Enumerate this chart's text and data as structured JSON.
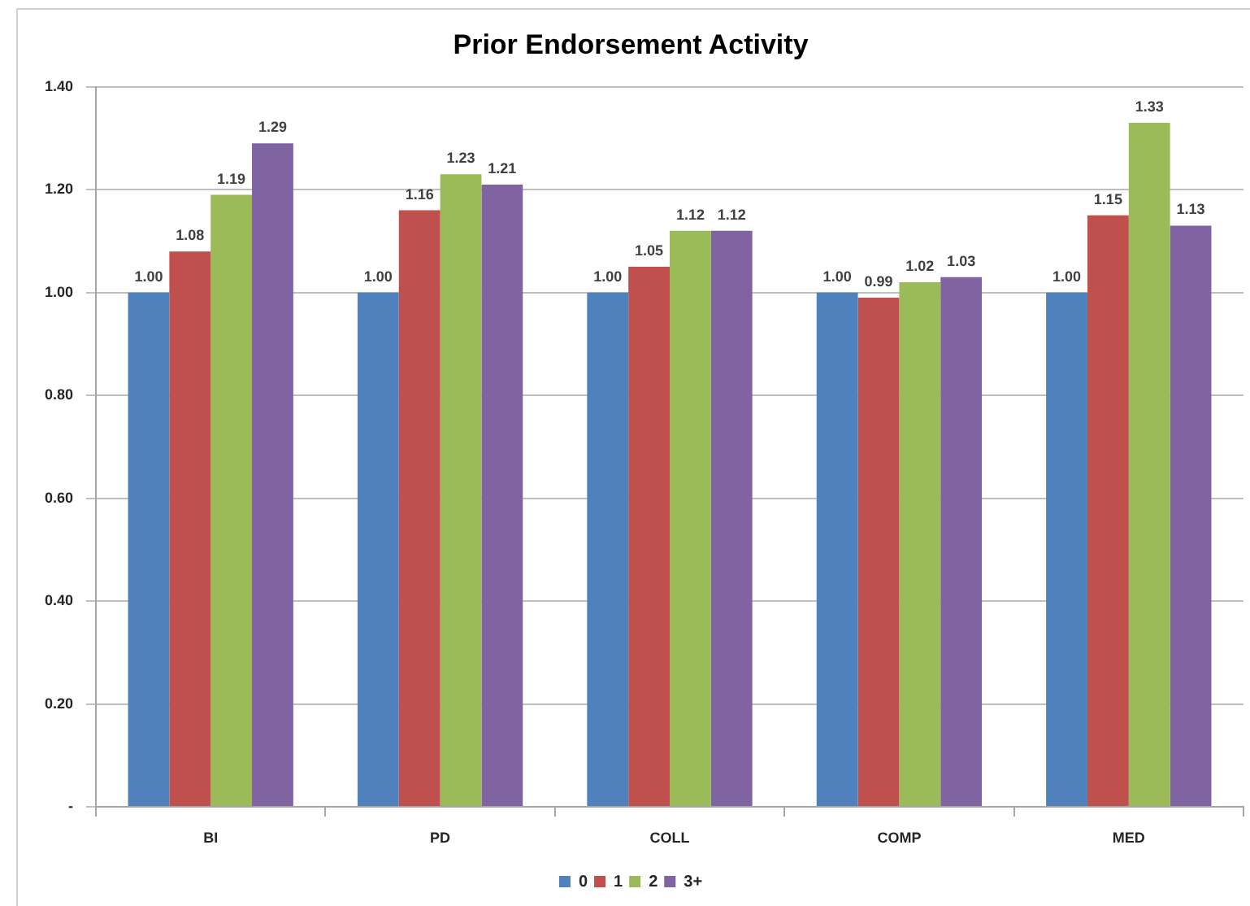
{
  "chart_data": {
    "type": "bar",
    "title": "Prior Endorsement Activity",
    "categories": [
      "BI",
      "PD",
      "COLL",
      "COMP",
      "MED"
    ],
    "series": [
      {
        "name": "0",
        "color": "#4f81bd",
        "values": [
          1.0,
          1.0,
          1.0,
          1.0,
          1.0
        ],
        "value_labels": [
          "1.00",
          "1.00",
          "1.00",
          "1.00",
          "1.00"
        ]
      },
      {
        "name": "1",
        "color": "#c0504d",
        "values": [
          1.08,
          1.16,
          1.05,
          0.99,
          1.15
        ],
        "value_labels": [
          "1.08",
          "1.16",
          "1.05",
          "0.99",
          "1.15"
        ]
      },
      {
        "name": "2",
        "color": "#9bbb59",
        "values": [
          1.19,
          1.23,
          1.12,
          1.02,
          1.33
        ],
        "value_labels": [
          "1.19",
          "1.23",
          "1.12",
          "1.02",
          "1.33"
        ]
      },
      {
        "name": "3+",
        "color": "#8064a2",
        "values": [
          1.29,
          1.21,
          1.12,
          1.03,
          1.13
        ],
        "value_labels": [
          "1.29",
          "1.21",
          "1.12",
          "1.03",
          "1.13"
        ]
      }
    ],
    "ylim": [
      0,
      1.4
    ],
    "yticks": [
      {
        "value": 0,
        "label": "-"
      },
      {
        "value": 0.2,
        "label": "0.20"
      },
      {
        "value": 0.4,
        "label": "0.40"
      },
      {
        "value": 0.6,
        "label": "0.60"
      },
      {
        "value": 0.8,
        "label": "0.80"
      },
      {
        "value": 1.0,
        "label": "1.00"
      },
      {
        "value": 1.2,
        "label": "1.20"
      },
      {
        "value": 1.4,
        "label": "1.40"
      }
    ],
    "grid": "y",
    "legend": "bottom"
  }
}
